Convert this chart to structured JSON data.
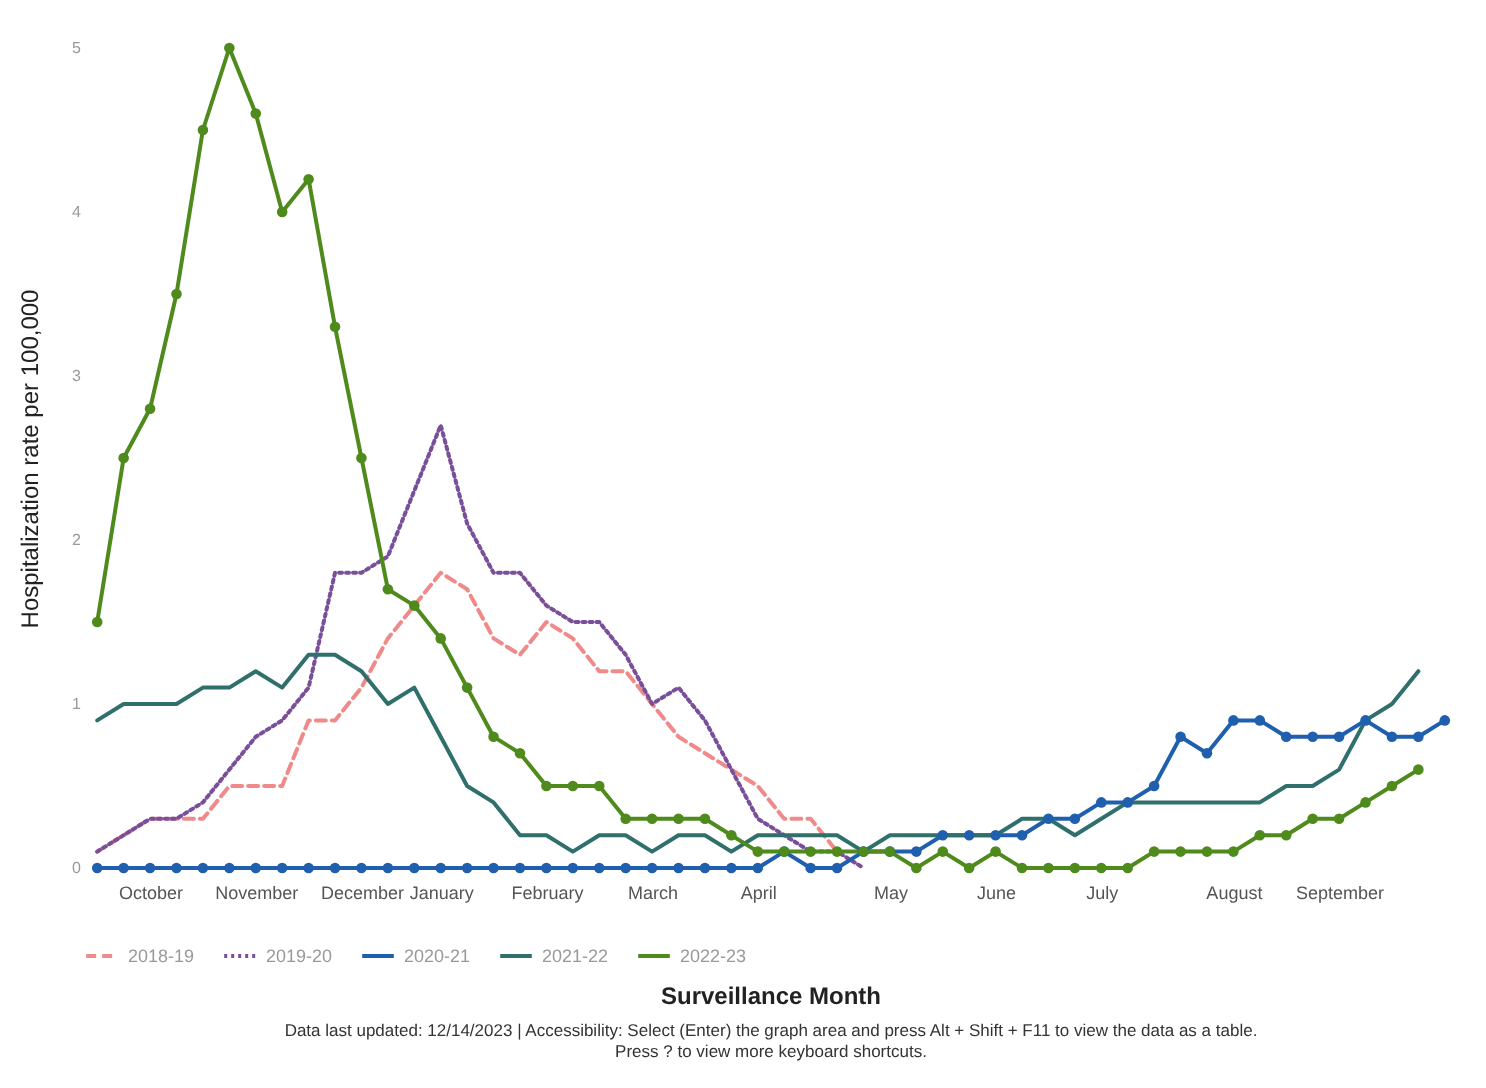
{
  "chart_data": {
    "type": "line",
    "xlabel": "Surveillance Month",
    "ylabel": "Hospitalization rate per 100,000",
    "annotations": [
      "Data last updated: 12/14/2023 | Accessibility: Select (Enter) the graph area and press Alt + Shift + F11 to view the data as a table.",
      "Press ? to view more keyboard shortcuts."
    ],
    "categories": [
      null,
      null,
      "October",
      null,
      null,
      null,
      "November",
      null,
      null,
      null,
      "December",
      null,
      null,
      "January",
      null,
      null,
      null,
      "February",
      null,
      null,
      null,
      "March",
      null,
      null,
      null,
      "April",
      null,
      null,
      null,
      null,
      "May",
      null,
      null,
      null,
      "June",
      null,
      null,
      null,
      "July",
      null,
      null,
      null,
      null,
      "August",
      null,
      null,
      null,
      "September",
      null,
      null,
      null,
      null
    ],
    "ylim": [
      0,
      5
    ],
    "yticks": [
      0,
      1,
      2,
      3,
      4,
      5
    ],
    "legend": "bottom",
    "series": [
      {
        "name": "2018-19",
        "color": "#f08a8a",
        "line_style": "dashed",
        "marker": "none",
        "values": [
          0.1,
          0.2,
          0.3,
          0.3,
          0.3,
          0.5,
          0.5,
          0.5,
          0.9,
          0.9,
          1.1,
          1.4,
          1.6,
          1.8,
          1.7,
          1.4,
          1.3,
          1.5,
          1.4,
          1.2,
          1.2,
          1.0,
          0.8,
          0.7,
          0.6,
          0.5,
          0.3,
          0.3,
          0.1,
          null,
          null,
          null,
          null,
          null,
          null,
          null,
          null,
          null,
          null,
          null,
          null,
          null,
          null,
          null,
          null,
          null,
          null,
          null,
          null,
          null,
          null,
          null
        ]
      },
      {
        "name": "2019-20",
        "color": "#7a4f9a",
        "line_style": "dotted",
        "marker": "none",
        "values": [
          0.1,
          0.2,
          0.3,
          0.3,
          0.4,
          0.6,
          0.8,
          0.9,
          1.1,
          1.8,
          1.8,
          1.9,
          2.3,
          2.7,
          2.1,
          1.8,
          1.8,
          1.6,
          1.5,
          1.5,
          1.3,
          1.0,
          1.1,
          0.9,
          0.6,
          0.3,
          0.2,
          0.1,
          0.1,
          0.0,
          null,
          null,
          null,
          null,
          null,
          null,
          null,
          null,
          null,
          null,
          null,
          null,
          null,
          null,
          null,
          null,
          null,
          null,
          null,
          null,
          null,
          null
        ]
      },
      {
        "name": "2020-21",
        "color": "#1f5fae",
        "line_style": "solid",
        "marker": "circle",
        "values": [
          0,
          0,
          0,
          0,
          0,
          0,
          0,
          0,
          0,
          0,
          0,
          0,
          0,
          0,
          0,
          0,
          0,
          0,
          0,
          0,
          0,
          0,
          0,
          0,
          0,
          0,
          0.1,
          0,
          0,
          0.1,
          0.1,
          0.1,
          0.2,
          0.2,
          0.2,
          0.2,
          0.3,
          0.3,
          0.4,
          0.4,
          0.5,
          0.8,
          0.7,
          0.9,
          0.9,
          0.8,
          0.8,
          0.8,
          0.9,
          0.8,
          0.8,
          0.9
        ]
      },
      {
        "name": "2021-22",
        "color": "#2f6f6c",
        "line_style": "solid",
        "marker": "none",
        "values": [
          0.9,
          1.0,
          1.0,
          1.0,
          1.1,
          1.1,
          1.2,
          1.1,
          1.3,
          1.3,
          1.2,
          1.0,
          1.1,
          0.8,
          0.5,
          0.4,
          0.2,
          0.2,
          0.1,
          0.2,
          0.2,
          0.1,
          0.2,
          0.2,
          0.1,
          0.2,
          0.2,
          0.2,
          0.2,
          0.1,
          0.2,
          0.2,
          0.2,
          0.2,
          0.2,
          0.3,
          0.3,
          0.2,
          0.3,
          0.4,
          0.4,
          0.4,
          0.4,
          0.4,
          0.4,
          0.5,
          0.5,
          0.6,
          0.9,
          1.0,
          1.2,
          null
        ]
      },
      {
        "name": "2022-23",
        "color": "#4f8a1c",
        "line_style": "solid",
        "marker": "circle",
        "values": [
          1.5,
          2.5,
          2.8,
          3.5,
          4.5,
          5.0,
          4.6,
          4.0,
          4.2,
          3.3,
          2.5,
          1.7,
          1.6,
          1.4,
          1.1,
          0.8,
          0.7,
          0.5,
          0.5,
          0.5,
          0.3,
          0.3,
          0.3,
          0.3,
          0.2,
          0.1,
          0.1,
          0.1,
          0.1,
          0.1,
          0.1,
          0,
          0.1,
          0,
          0.1,
          0,
          0,
          0,
          0,
          0,
          0.1,
          0.1,
          0.1,
          0.1,
          0.2,
          0.2,
          0.3,
          0.3,
          0.4,
          0.5,
          0.6,
          null
        ]
      }
    ]
  }
}
